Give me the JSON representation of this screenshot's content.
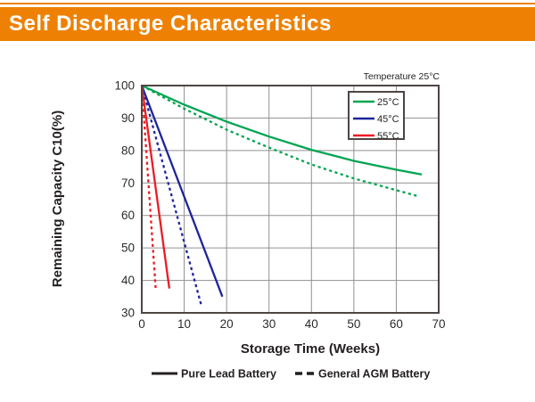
{
  "banner": {
    "title": "Self Discharge Characteristics",
    "color": "#ee8103"
  },
  "chart": {
    "temperature_note": "Temperature 25°C",
    "colors": {
      "grid": "#919191",
      "plot_border": "#4d4643",
      "text": "#231f20"
    }
  },
  "chart_data": {
    "type": "line",
    "title": "Self Discharge Characteristics",
    "xlabel": "Storage Time (Weeks)",
    "ylabel": "Remaining Capacity C10(%)",
    "xlim": [
      0,
      70
    ],
    "ylim": [
      30,
      100
    ],
    "x_ticks": [
      0,
      10,
      20,
      30,
      40,
      50,
      60,
      70
    ],
    "y_ticks": [
      100,
      90,
      80,
      70,
      60,
      50,
      40,
      30
    ],
    "grid": true,
    "annotation": "Temperature 25°C",
    "legend_box": {
      "position": "top-right",
      "entries": [
        {
          "label": "25°C",
          "color": "#00a551"
        },
        {
          "label": "45°C",
          "color": "#1e249c"
        },
        {
          "label": "55°C",
          "color": "#ec1c24"
        }
      ]
    },
    "line_style_legend": [
      {
        "label": "Pure Lead Battery",
        "style": "solid"
      },
      {
        "label": "General AGM Battery",
        "style": "dashed"
      }
    ],
    "series": [
      {
        "name": "25°C Pure Lead Battery",
        "temperature": "25°C",
        "color": "#00a551",
        "style": "solid",
        "points": [
          [
            0,
            100
          ],
          [
            10,
            94.1
          ],
          [
            20,
            88.9
          ],
          [
            30,
            84.3
          ],
          [
            40,
            80.2
          ],
          [
            50,
            76.8
          ],
          [
            60,
            74.1
          ],
          [
            66,
            72.6
          ]
        ]
      },
      {
        "name": "25°C General AGM Battery",
        "temperature": "25°C",
        "color": "#00a551",
        "style": "dashed",
        "points": [
          [
            0,
            100
          ],
          [
            10,
            92.9
          ],
          [
            20,
            86.4
          ],
          [
            30,
            80.9
          ],
          [
            40,
            75.7
          ],
          [
            50,
            71.4
          ],
          [
            60,
            67.8
          ],
          [
            65,
            66
          ]
        ]
      },
      {
        "name": "45°C Pure Lead Battery",
        "temperature": "45°C",
        "color": "#1e249c",
        "style": "solid",
        "points": [
          [
            0,
            100
          ],
          [
            19,
            35
          ]
        ]
      },
      {
        "name": "45°C General AGM Battery",
        "temperature": "45°C",
        "color": "#1e249c",
        "style": "dashed",
        "points": [
          [
            0,
            100
          ],
          [
            14,
            32.5
          ]
        ]
      },
      {
        "name": "55°C Pure Lead Battery",
        "temperature": "55°C",
        "color": "#ec1c24",
        "style": "solid",
        "points": [
          [
            0,
            100
          ],
          [
            6.5,
            37.5
          ]
        ]
      },
      {
        "name": "55°C General AGM Battery",
        "temperature": "55°C",
        "color": "#ec1c24",
        "style": "dashed",
        "points": [
          [
            0,
            100
          ],
          [
            3.3,
            37
          ]
        ]
      }
    ]
  }
}
